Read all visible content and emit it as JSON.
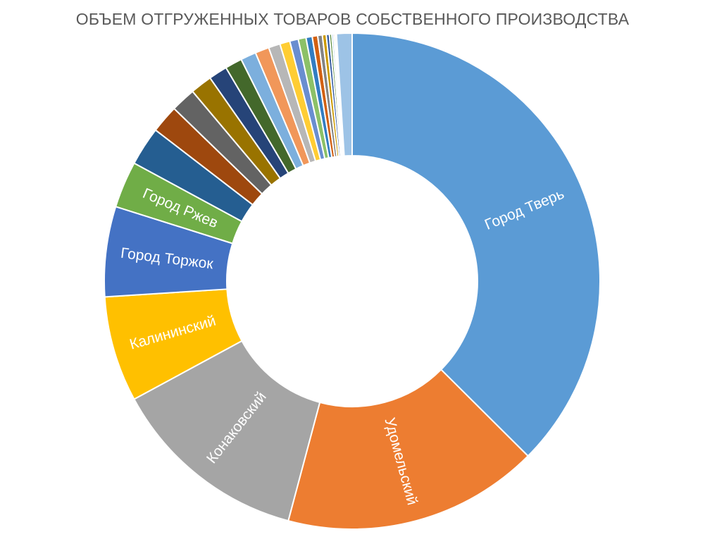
{
  "chart_data": {
    "type": "pie",
    "title": "ОБЪЕМ ОТГРУЖЕННЫХ ТОВАРОВ СОБСТВЕННОГО ПРОИЗВОДСТВА",
    "slices": [
      {
        "label": "Город Тверь",
        "value": 37.0,
        "color": "#5B9BD5"
      },
      {
        "label": "Удомельский",
        "value": 16.5,
        "color": "#ED7D31"
      },
      {
        "label": "Конаковский",
        "value": 12.8,
        "color": "#A5A5A5"
      },
      {
        "label": "Калининский",
        "value": 6.8,
        "color": "#FFC000"
      },
      {
        "label": "Город Торжок",
        "value": 5.8,
        "color": "#4472C4"
      },
      {
        "label": "Город Ржев",
        "value": 3.0,
        "color": "#70AD47"
      },
      {
        "label": "",
        "value": 2.5,
        "color": "#255E91"
      },
      {
        "label": "",
        "value": 1.8,
        "color": "#9E480E"
      },
      {
        "label": "",
        "value": 1.6,
        "color": "#636363"
      },
      {
        "label": "",
        "value": 1.4,
        "color": "#997300"
      },
      {
        "label": "",
        "value": 1.2,
        "color": "#264478"
      },
      {
        "label": "",
        "value": 1.1,
        "color": "#43682B"
      },
      {
        "label": "",
        "value": 1.0,
        "color": "#7CAFDD"
      },
      {
        "label": "",
        "value": 0.9,
        "color": "#F1975A"
      },
      {
        "label": "",
        "value": 0.75,
        "color": "#B7B7B7"
      },
      {
        "label": "",
        "value": 0.65,
        "color": "#FFCD33"
      },
      {
        "label": "",
        "value": 0.55,
        "color": "#698ED0"
      },
      {
        "label": "",
        "value": 0.5,
        "color": "#8CC168"
      },
      {
        "label": "",
        "value": 0.4,
        "color": "#327DC2"
      },
      {
        "label": "",
        "value": 0.35,
        "color": "#D26012"
      },
      {
        "label": "",
        "value": 0.3,
        "color": "#848484"
      },
      {
        "label": "",
        "value": 0.25,
        "color": "#CC9A00"
      },
      {
        "label": "",
        "value": 0.2,
        "color": "#335AA1"
      },
      {
        "label": "",
        "value": 0.15,
        "color": "#5A8A39"
      },
      {
        "label": "",
        "value": 0.12,
        "color": "#A3C7E8"
      },
      {
        "label": "",
        "value": 0.1,
        "color": "#F4B183"
      },
      {
        "label": "",
        "value": 0.08,
        "color": "#C9C9C9"
      },
      {
        "label": "",
        "value": 1.0,
        "color": "#9DC3E6"
      }
    ]
  }
}
